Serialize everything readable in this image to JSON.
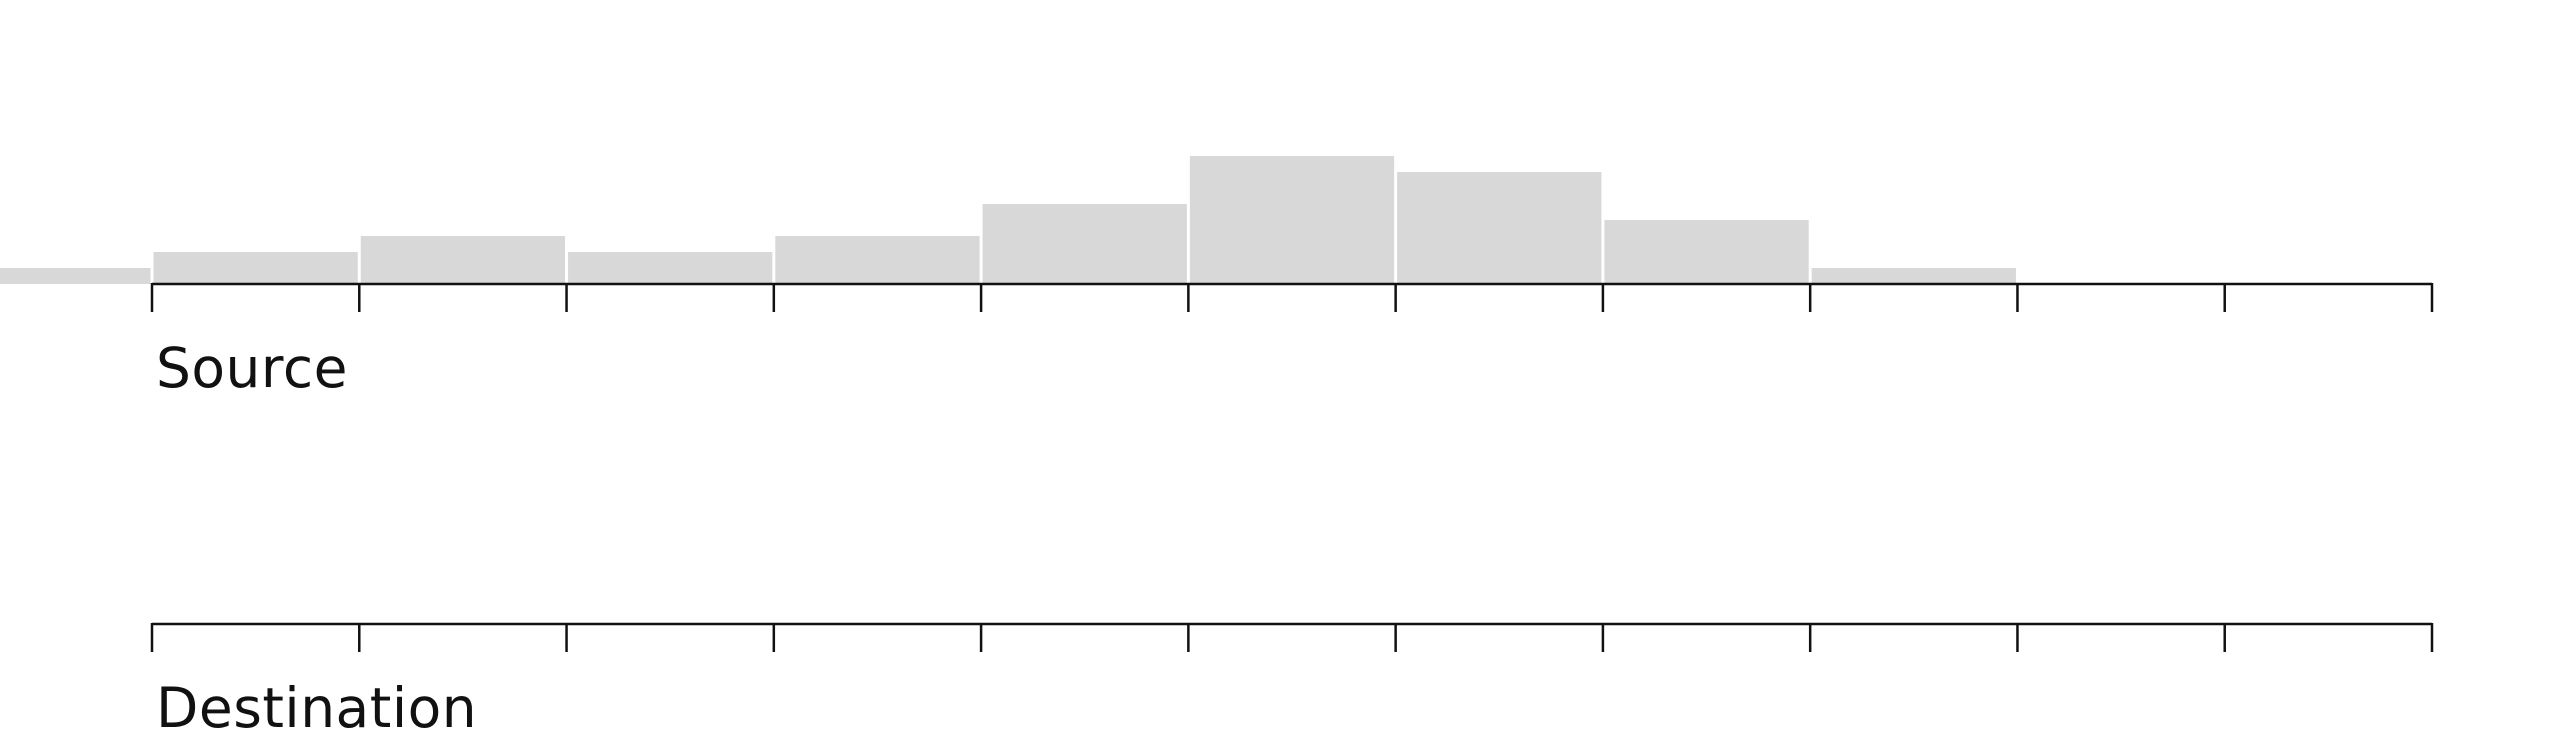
{
  "chart_data": {
    "type": "bar",
    "title": "",
    "axes": {
      "source_label": "Source",
      "destination_label": "Destination"
    },
    "bins": 11,
    "values": [
      1,
      2,
      3,
      2,
      3,
      5,
      8,
      7,
      4,
      1,
      0
    ],
    "ylim": [
      0,
      8
    ],
    "grid": false,
    "colors": {
      "bar": "#d8d8d8",
      "axis": "#111111"
    }
  }
}
